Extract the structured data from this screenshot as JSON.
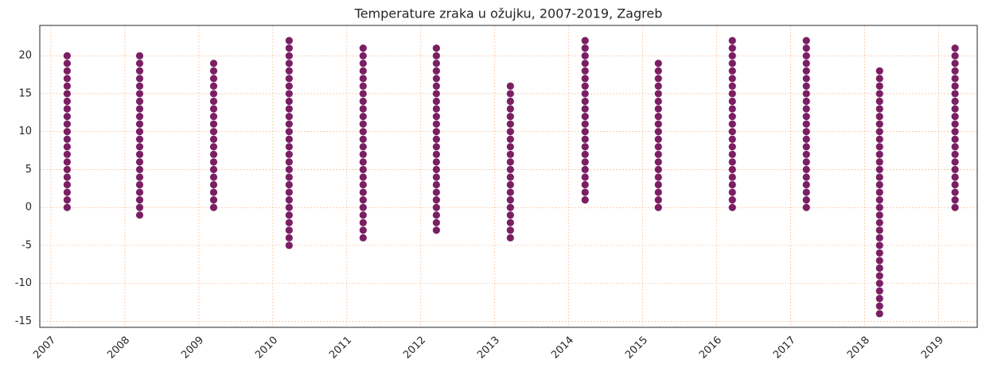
{
  "chart_data": {
    "type": "scatter",
    "title": "Temperature zraka u ožujku, 2007-2019, Zagreb",
    "color": "#7b1f63",
    "grid": true,
    "xlim": [
      2006.85,
      2019.52
    ],
    "xticks": [
      2007,
      2008,
      2009,
      2010,
      2011,
      2012,
      2013,
      2014,
      2015,
      2016,
      2017,
      2018,
      2019
    ],
    "ylim": [
      -15.8,
      24
    ],
    "yticks": [
      -15,
      -10,
      -5,
      0,
      5,
      10,
      15,
      20
    ],
    "x": [
      2007.22,
      2007.22,
      2007.22,
      2007.22,
      2007.22,
      2007.22,
      2007.22,
      2007.22,
      2007.22,
      2007.22,
      2007.22,
      2007.22,
      2007.22,
      2007.22,
      2007.22,
      2007.22,
      2007.22,
      2007.22,
      2007.22,
      2007.22,
      2007.22,
      2008.2,
      2008.2,
      2008.2,
      2008.2,
      2008.2,
      2008.2,
      2008.2,
      2008.2,
      2008.2,
      2008.2,
      2008.2,
      2008.2,
      2008.2,
      2008.2,
      2008.2,
      2008.2,
      2008.2,
      2008.2,
      2008.2,
      2008.2,
      2008.2,
      2008.2,
      2009.2,
      2009.2,
      2009.2,
      2009.2,
      2009.2,
      2009.2,
      2009.2,
      2009.2,
      2009.2,
      2009.2,
      2009.2,
      2009.2,
      2009.2,
      2009.2,
      2009.2,
      2009.2,
      2009.2,
      2009.2,
      2009.2,
      2009.2,
      2010.22,
      2010.22,
      2010.22,
      2010.22,
      2010.22,
      2010.22,
      2010.22,
      2010.22,
      2010.22,
      2010.22,
      2010.22,
      2010.22,
      2010.22,
      2010.22,
      2010.22,
      2010.22,
      2010.22,
      2010.22,
      2010.22,
      2010.22,
      2010.22,
      2010.22,
      2010.22,
      2010.22,
      2010.22,
      2010.22,
      2010.22,
      2010.22,
      2011.22,
      2011.22,
      2011.22,
      2011.22,
      2011.22,
      2011.22,
      2011.22,
      2011.22,
      2011.22,
      2011.22,
      2011.22,
      2011.22,
      2011.22,
      2011.22,
      2011.22,
      2011.22,
      2011.22,
      2011.22,
      2011.22,
      2011.22,
      2011.22,
      2011.22,
      2011.22,
      2011.22,
      2011.22,
      2011.22,
      2012.21,
      2012.21,
      2012.21,
      2012.21,
      2012.21,
      2012.21,
      2012.21,
      2012.21,
      2012.21,
      2012.21,
      2012.21,
      2012.21,
      2012.21,
      2012.21,
      2012.21,
      2012.21,
      2012.21,
      2012.21,
      2012.21,
      2012.21,
      2012.21,
      2012.21,
      2012.21,
      2012.21,
      2012.21,
      2013.21,
      2013.21,
      2013.21,
      2013.21,
      2013.21,
      2013.21,
      2013.21,
      2013.21,
      2013.21,
      2013.21,
      2013.21,
      2013.21,
      2013.21,
      2013.21,
      2013.21,
      2013.21,
      2013.21,
      2013.21,
      2013.21,
      2013.21,
      2013.21,
      2014.22,
      2014.22,
      2014.22,
      2014.22,
      2014.22,
      2014.22,
      2014.22,
      2014.22,
      2014.22,
      2014.22,
      2014.22,
      2014.22,
      2014.22,
      2014.22,
      2014.22,
      2014.22,
      2014.22,
      2014.22,
      2014.22,
      2014.22,
      2014.22,
      2014.22,
      2015.21,
      2015.21,
      2015.21,
      2015.21,
      2015.21,
      2015.21,
      2015.21,
      2015.21,
      2015.21,
      2015.21,
      2015.21,
      2015.21,
      2015.21,
      2015.21,
      2015.21,
      2015.21,
      2015.21,
      2015.21,
      2015.21,
      2015.21,
      2016.21,
      2016.21,
      2016.21,
      2016.21,
      2016.21,
      2016.21,
      2016.21,
      2016.21,
      2016.21,
      2016.21,
      2016.21,
      2016.21,
      2016.21,
      2016.21,
      2016.21,
      2016.21,
      2016.21,
      2016.21,
      2016.21,
      2016.21,
      2016.21,
      2016.21,
      2016.21,
      2017.21,
      2017.21,
      2017.21,
      2017.21,
      2017.21,
      2017.21,
      2017.21,
      2017.21,
      2017.21,
      2017.21,
      2017.21,
      2017.21,
      2017.21,
      2017.21,
      2017.21,
      2017.21,
      2017.21,
      2017.21,
      2017.21,
      2017.21,
      2017.21,
      2017.21,
      2017.21,
      2018.2,
      2018.2,
      2018.2,
      2018.2,
      2018.2,
      2018.2,
      2018.2,
      2018.2,
      2018.2,
      2018.2,
      2018.2,
      2018.2,
      2018.2,
      2018.2,
      2018.2,
      2018.2,
      2018.2,
      2018.2,
      2018.2,
      2018.2,
      2018.2,
      2018.2,
      2018.2,
      2018.2,
      2018.2,
      2018.2,
      2018.2,
      2018.2,
      2018.2,
      2018.2,
      2018.2,
      2018.2,
      2018.2,
      2019.22,
      2019.22,
      2019.22,
      2019.22,
      2019.22,
      2019.22,
      2019.22,
      2019.22,
      2019.22,
      2019.22,
      2019.22,
      2019.22,
      2019.22,
      2019.22,
      2019.22,
      2019.22,
      2019.22,
      2019.22,
      2019.22,
      2019.22,
      2019.22,
      2019.22
    ],
    "values": [
      0,
      1,
      2,
      3,
      4,
      5,
      6,
      7,
      8,
      9,
      10,
      11,
      12,
      13,
      14,
      15,
      16,
      17,
      18,
      19,
      20,
      -1,
      0,
      1,
      2,
      3,
      4,
      5,
      6,
      7,
      8,
      9,
      10,
      11,
      12,
      13,
      14,
      15,
      16,
      17,
      18,
      19,
      20,
      0,
      1,
      2,
      3,
      4,
      5,
      6,
      7,
      8,
      9,
      10,
      11,
      12,
      13,
      14,
      15,
      16,
      17,
      18,
      19,
      -5,
      -4,
      -3,
      -2,
      -1,
      0,
      1,
      2,
      3,
      4,
      5,
      6,
      7,
      8,
      9,
      10,
      11,
      12,
      13,
      14,
      15,
      16,
      17,
      18,
      19,
      20,
      21,
      22,
      -4,
      -3,
      -2,
      -1,
      0,
      1,
      2,
      3,
      4,
      5,
      6,
      7,
      8,
      9,
      10,
      11,
      12,
      13,
      14,
      15,
      16,
      17,
      18,
      19,
      20,
      21,
      -3,
      -2,
      -1,
      0,
      1,
      2,
      3,
      4,
      5,
      6,
      7,
      8,
      9,
      10,
      11,
      12,
      13,
      14,
      15,
      16,
      17,
      18,
      19,
      20,
      21,
      -4,
      -3,
      -2,
      -1,
      0,
      1,
      2,
      3,
      4,
      5,
      6,
      7,
      8,
      9,
      10,
      11,
      12,
      13,
      14,
      15,
      16,
      1,
      2,
      3,
      4,
      5,
      6,
      7,
      8,
      9,
      10,
      11,
      12,
      13,
      14,
      15,
      16,
      17,
      18,
      19,
      20,
      21,
      22,
      0,
      1,
      2,
      3,
      4,
      5,
      6,
      7,
      8,
      9,
      10,
      11,
      12,
      13,
      14,
      15,
      16,
      17,
      18,
      19,
      0,
      1,
      2,
      3,
      4,
      5,
      6,
      7,
      8,
      9,
      10,
      11,
      12,
      13,
      14,
      15,
      16,
      17,
      18,
      19,
      20,
      21,
      22,
      0,
      1,
      2,
      3,
      4,
      5,
      6,
      7,
      8,
      9,
      10,
      11,
      12,
      13,
      14,
      15,
      16,
      17,
      18,
      19,
      20,
      21,
      22,
      -14,
      -13,
      -12,
      -11,
      -10,
      -9,
      -8,
      -7,
      -6,
      -5,
      -4,
      -3,
      -2,
      -1,
      0,
      1,
      2,
      3,
      4,
      5,
      6,
      7,
      8,
      9,
      10,
      11,
      12,
      13,
      14,
      15,
      16,
      17,
      18,
      0,
      1,
      2,
      3,
      4,
      5,
      6,
      7,
      8,
      9,
      10,
      11,
      12,
      13,
      14,
      15,
      16,
      17,
      18,
      19,
      20,
      21
    ]
  }
}
